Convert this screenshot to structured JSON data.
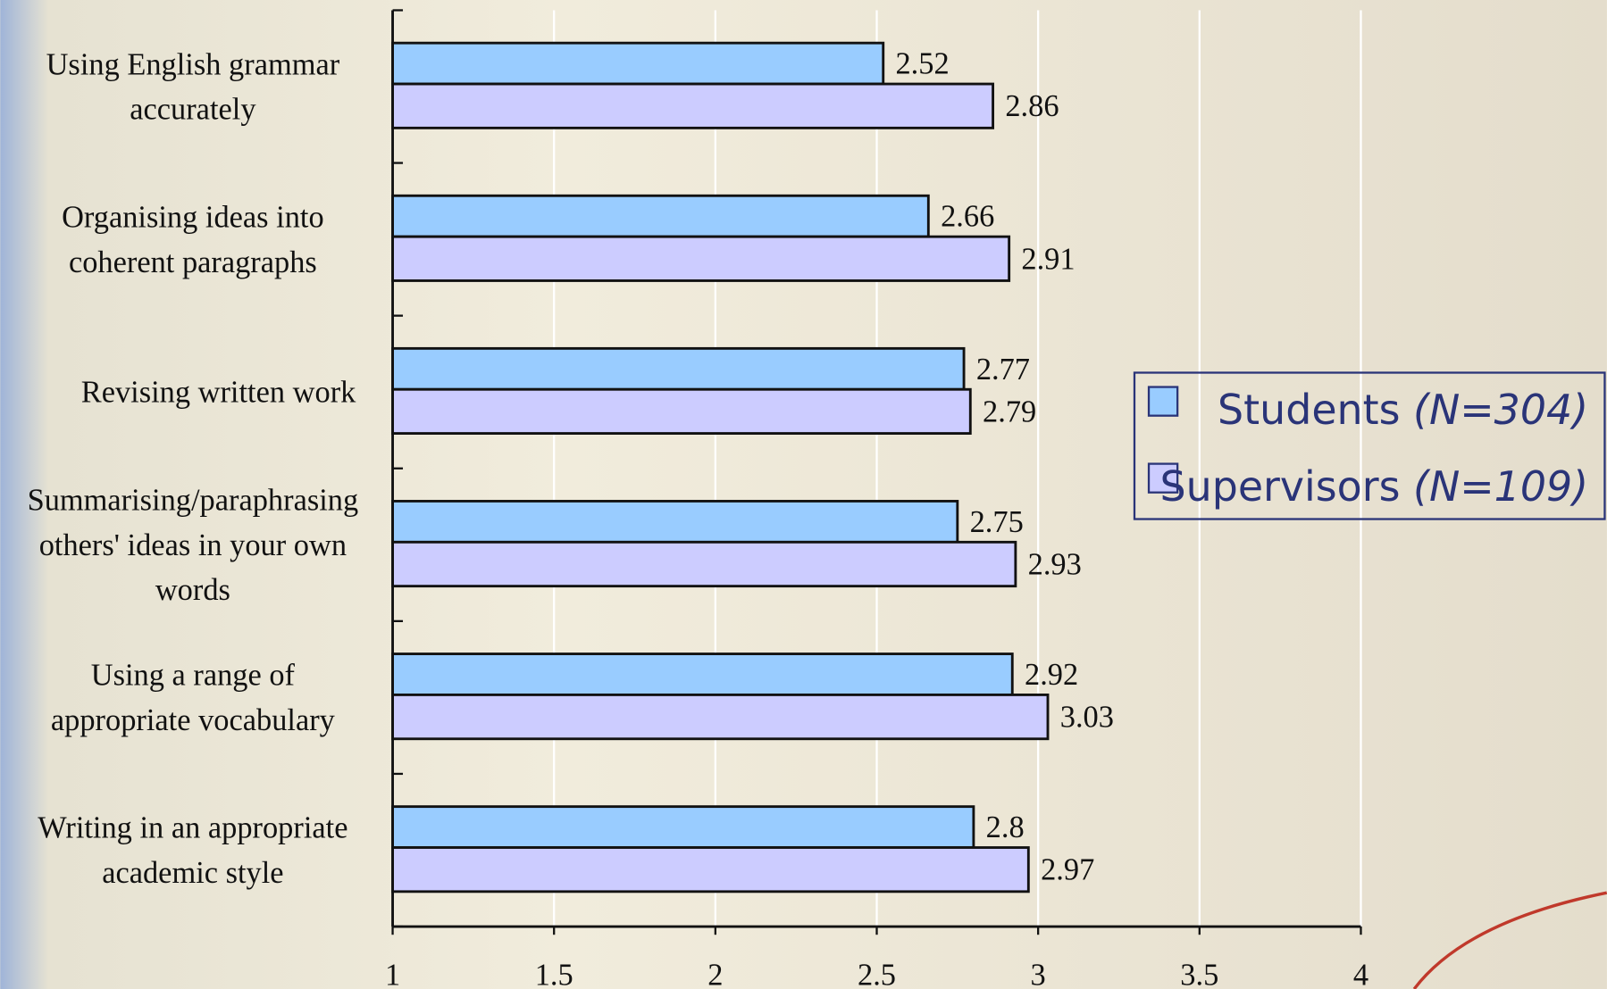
{
  "chart_data": {
    "type": "bar",
    "orientation": "horizontal",
    "categories": [
      "Using English grammar\naccurately",
      "Organising ideas into\ncoherent paragraphs",
      "Revising written work",
      "Summarising/paraphrasing\nothers' ideas in your own\nwords",
      "Using a range of\nappropriate vocabulary",
      "Writing in an appropriate\nacademic style"
    ],
    "series": [
      {
        "name": "Students (N=304)",
        "color": "#99ccff",
        "values": [
          2.52,
          2.66,
          2.77,
          2.75,
          2.92,
          2.8
        ]
      },
      {
        "name": "Supervisors (N=109)",
        "color": "#ccccff",
        "values": [
          2.86,
          2.91,
          2.79,
          2.93,
          3.03,
          2.97
        ]
      }
    ],
    "xlim": [
      1,
      4
    ],
    "xticks": [
      1,
      1.5,
      2,
      2.5,
      3,
      3.5,
      4
    ],
    "grid": true,
    "legend": "right"
  }
}
